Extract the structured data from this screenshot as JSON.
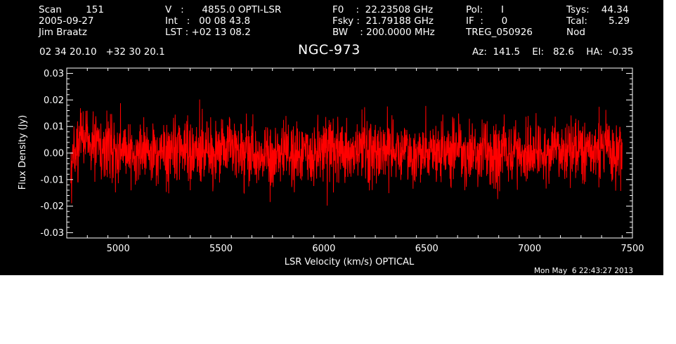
{
  "header": {
    "row1": [
      {
        "id": "scan",
        "text": "Scan        151"
      },
      {
        "id": "velocity",
        "text": "V   :      4855.0 OPTI-LSR"
      },
      {
        "id": "f0",
        "text": "F0    :  22.23508 GHz"
      },
      {
        "id": "pol",
        "text": "Pol:      I"
      },
      {
        "id": "tsys",
        "text": "Tsys:    44.34"
      }
    ],
    "row2": [
      {
        "id": "date",
        "text": "2005-09-27"
      },
      {
        "id": "int",
        "text": "Int   :   00 08 43.8"
      },
      {
        "id": "fsky",
        "text": "Fsky :  21.79188 GHz"
      },
      {
        "id": "if",
        "text": "IF  :      0"
      },
      {
        "id": "tcal",
        "text": "Tcal:       5.29"
      }
    ],
    "row3": [
      {
        "id": "observer",
        "text": "Jim Braatz"
      },
      {
        "id": "lst",
        "text": "LST : +02 13 08.2"
      },
      {
        "id": "bw",
        "text": "BW    : 200.0000 MHz"
      },
      {
        "id": "treg",
        "text": "TREG_050926"
      },
      {
        "id": "nod",
        "text": "Nod"
      }
    ],
    "coords": "02 34 20.10   +32 30 20.1",
    "source": "NGC-973",
    "azel": "Az:  141.5    El:   82.6    HA:  -0.35"
  },
  "footer": {
    "timestamp": "Mon May  6 22:43:27 2013"
  },
  "colors": {
    "background": "#000000",
    "axes": "#ffffff",
    "spectrum": "#ff0000"
  },
  "chart_data": {
    "type": "line",
    "xlabel": "LSR Velocity (km/s) OPTICAL",
    "ylabel": "Flux Density (Jy)",
    "xlim": [
      4750,
      7500
    ],
    "ylim": [
      -0.032,
      0.032
    ],
    "xticks": [
      5000,
      5500,
      6000,
      6500,
      7000,
      7500
    ],
    "xtick_labels": [
      "5000",
      "5500",
      "6000",
      "6500",
      "7000",
      "7500"
    ],
    "yticks": [
      -0.03,
      -0.02,
      -0.01,
      0.0,
      0.01,
      0.02,
      0.03
    ],
    "ytick_labels": [
      "-0.03",
      "-0.02",
      "-0.01",
      "0.00",
      "0.01",
      "0.02",
      "0.03"
    ],
    "grid": false,
    "series": [
      {
        "color": "#ff0000",
        "x_start": 4770,
        "x_end": 7450,
        "x": [
          4770,
          4800,
          4830,
          4870,
          5000,
          5200,
          5400,
          5600,
          5800,
          6000,
          6200,
          6400,
          6600,
          6800,
          7000,
          7200,
          7400,
          7450
        ],
        "y": [
          -0.002,
          0.003,
          0.006,
          0.004,
          0.001,
          0.0,
          0.001,
          0.0,
          0.0,
          0.0,
          0.001,
          0.0,
          0.001,
          0.0,
          0.0,
          0.001,
          0.001,
          0.0
        ],
        "noise_rms": 0.006
      }
    ]
  }
}
